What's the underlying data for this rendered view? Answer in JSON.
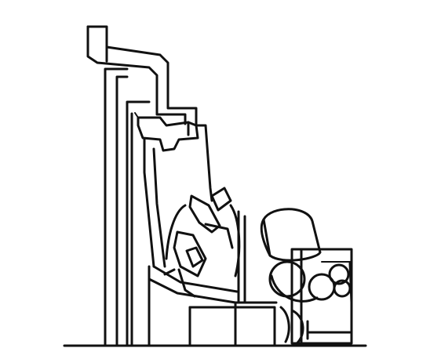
{
  "figure": {
    "kind": "mechanical line drawing",
    "ink_color": "#111111",
    "background_color": "#ffffff",
    "icons": [
      "tall-mounting-post-icon",
      "exhaust-pipe-icon",
      "linkage-arm-icon",
      "chain-link-icon",
      "cylinder-tank-icon",
      "hose-coil-icon",
      "angled-base-plate-icon",
      "ground-line-icon"
    ]
  }
}
